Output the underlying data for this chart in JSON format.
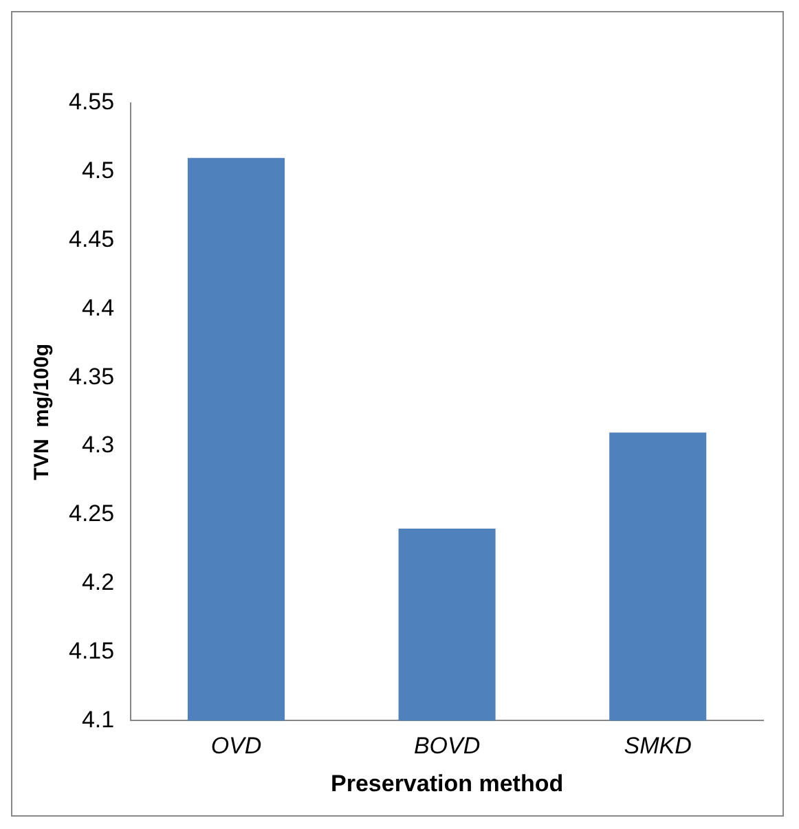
{
  "chart_data": {
    "type": "bar",
    "xlabel": "Preservation method",
    "ylabel": "TVN  mg/100g",
    "categories": [
      "OVD",
      "BOVD",
      "SMKD"
    ],
    "values": [
      4.51,
      4.24,
      4.31
    ],
    "color": "#4f81bd",
    "ylim": [
      4.1,
      4.55
    ],
    "yticks": [
      4.1,
      4.15,
      4.2,
      4.25,
      4.3,
      4.35,
      4.4,
      4.45,
      4.5,
      4.55
    ],
    "grid": false,
    "legend": false
  }
}
